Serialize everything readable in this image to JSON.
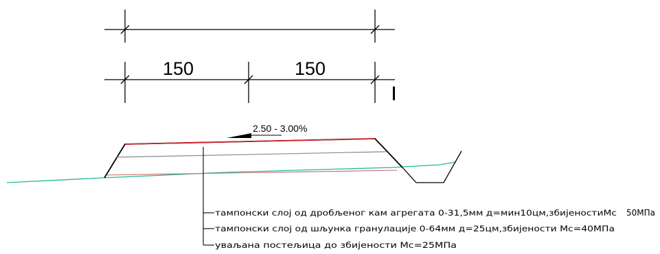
{
  "dimensions": {
    "left_value": "150",
    "right_value": "150"
  },
  "slope_label": "2.50 - 3.00%",
  "layers": [
    {
      "text": "тампонски слој од дробљеног кам агрегата 0-31,5мм д=мин10цм,збијеностиМс",
      "suffix": "50МПа"
    },
    {
      "text": "тампонски слој од шљунка гранулације 0-64мм д=25цм,збијености Мс=40МПа",
      "suffix": ""
    },
    {
      "text": "уваљана постељица до збијености Мс=25МПа",
      "suffix": ""
    }
  ],
  "colors": {
    "top_layer": "#e0202a",
    "ground_line": "#20b89a",
    "lines": "#000000",
    "middle_line": "#8a8a8a"
  }
}
